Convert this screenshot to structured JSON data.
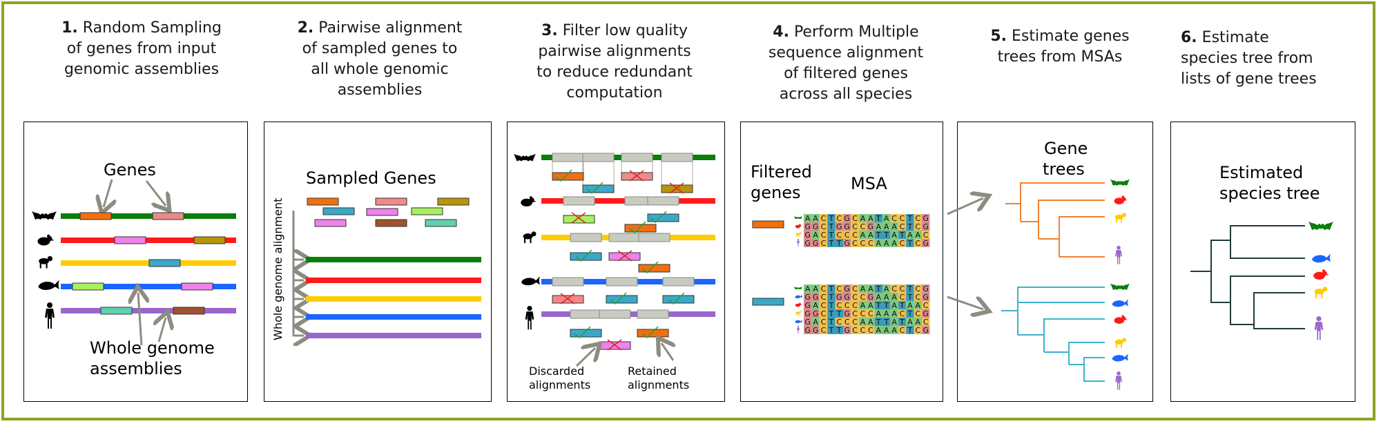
{
  "steps": [
    {
      "number": "1.",
      "lines": [
        "Random Sampling",
        "of genes from input",
        "genomic assemblies"
      ]
    },
    {
      "number": "2.",
      "lines": [
        "Pairwise alignment",
        "of sampled genes to",
        "all whole genomic",
        "assemblies"
      ]
    },
    {
      "number": "3.",
      "lines": [
        "Filter low quality",
        "pairwise alignments",
        "to reduce redundant",
        "computation"
      ]
    },
    {
      "number": "4.",
      "lines": [
        "Perform Multiple",
        "sequence alignment",
        "of filtered genes",
        "across all species"
      ]
    },
    {
      "number": "5.",
      "lines": [
        "Estimate genes",
        "trees from MSAs"
      ]
    },
    {
      "number": "6.",
      "lines": [
        "Estimate",
        "species tree from",
        "lists of gene trees"
      ]
    }
  ],
  "panel1": {
    "genes_label": "Genes",
    "assemblies_label_1": "Whole genome",
    "assemblies_label_2": "assemblies"
  },
  "panel2": {
    "sampled_label": "Sampled Genes",
    "side_label": "Whole genome alignment"
  },
  "panel3": {
    "discarded_1": "Discarded",
    "discarded_2": "alignments",
    "retained_1": "Retained",
    "retained_2": "alignments"
  },
  "panel4": {
    "filtered_1": "Filtered",
    "filtered_2": "genes",
    "msa_label": "MSA",
    "msa1_rows": [
      "AACTCGCAATACCTCG",
      "GGCTGGCCGAAACTCG",
      "GACTCCCAATTATAAC",
      "GGCTTGCCCAAACTCG"
    ],
    "msa2_rows": [
      "AACTCGCAATACCTCG",
      "GGCTGGCCGAAACTCG",
      "GACTCCCAATTATAAC",
      "GGCTTGCCCAAACTCG",
      "GACTCCCAATTATAAC",
      "GGCTTGCCCAAACTCG"
    ]
  },
  "panel5": {
    "label_1": "Gene",
    "label_2": "trees"
  },
  "panel6": {
    "label_1": "Estimated",
    "label_2": "species tree"
  },
  "colors": {
    "border": "#8aa51f",
    "bat": "#0a7d0a",
    "rat": "#ff1a1a",
    "monkey": "#ffcc00",
    "whale": "#1a66ff",
    "human": "#9966cc",
    "tree_orange": "#f08030",
    "tree_cyan": "#3bb3c9",
    "tree_dark": "#1f3a3a",
    "arrow": "#8c8c80"
  }
}
